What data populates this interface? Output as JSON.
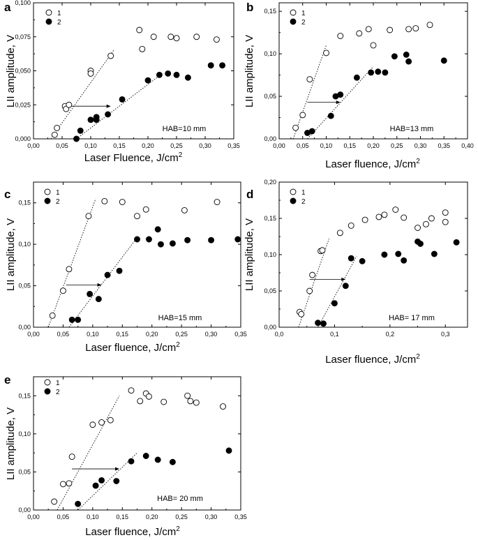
{
  "chart_data": [
    {
      "type": "scatter",
      "panel": "a",
      "xlabel": "Laser Fluence, J/cm",
      "xlabel_sup": "2",
      "ylabel": "LII amplitude, V",
      "xlim": [
        0,
        0.35
      ],
      "ylim": [
        0,
        0.1
      ],
      "xticks": [
        0,
        0.05,
        0.1,
        0.15,
        0.2,
        0.25,
        0.3,
        0.35
      ],
      "xticklabels": [
        "0,00",
        "0,05",
        "0,10",
        "0,15",
        "0,20",
        "0,25",
        "0,30",
        "0,35"
      ],
      "yticks": [
        0,
        0.025,
        0.05,
        0.075,
        0.1
      ],
      "yticklabels": [
        "0,000",
        "0,025",
        "0,050",
        "0,075",
        "0,100"
      ],
      "annotation": "HAB=10 mm",
      "series": [
        {
          "name": "1",
          "marker": "open",
          "points": [
            [
              0.037,
              0.003
            ],
            [
              0.041,
              0.008
            ],
            [
              0.055,
              0.024
            ],
            [
              0.057,
              0.022
            ],
            [
              0.062,
              0.025
            ],
            [
              0.1,
              0.05
            ],
            [
              0.1,
              0.048
            ],
            [
              0.135,
              0.061
            ],
            [
              0.185,
              0.08
            ],
            [
              0.19,
              0.066
            ],
            [
              0.21,
              0.075
            ],
            [
              0.24,
              0.075
            ],
            [
              0.25,
              0.074
            ],
            [
              0.285,
              0.075
            ],
            [
              0.32,
              0.073
            ]
          ]
        },
        {
          "name": "2",
          "marker": "filled",
          "points": [
            [
              0.075,
              0
            ],
            [
              0.082,
              0.006
            ],
            [
              0.1,
              0.014
            ],
            [
              0.11,
              0.016
            ],
            [
              0.11,
              0.014
            ],
            [
              0.13,
              0.018
            ],
            [
              0.155,
              0.029
            ],
            [
              0.2,
              0.043
            ],
            [
              0.22,
              0.047
            ],
            [
              0.235,
              0.048
            ],
            [
              0.25,
              0.047
            ],
            [
              0.27,
              0.045
            ],
            [
              0.31,
              0.054
            ],
            [
              0.33,
              0.054
            ]
          ]
        }
      ],
      "fits": [
        [
          [
            0.03,
            0
          ],
          [
            0.14,
            0.065
          ]
        ],
        [
          [
            0.075,
            0
          ],
          [
            0.225,
            0.048
          ]
        ]
      ],
      "arrow": [
        [
          0.06,
          0.024
        ],
        [
          0.135,
          0.024
        ]
      ]
    },
    {
      "type": "scatter",
      "panel": "b",
      "xlabel": "Laser fluence, J/cm",
      "xlabel_sup": "2",
      "ylabel": "LII amplitude, V",
      "xlim": [
        0,
        0.4
      ],
      "ylim": [
        0,
        0.16
      ],
      "xticks": [
        0,
        0.05,
        0.1,
        0.15,
        0.2,
        0.25,
        0.3,
        0.35,
        0.4
      ],
      "xticklabels": [
        "0,00",
        "0,05",
        "0,10",
        "0,15",
        "0,20",
        "0,25",
        "0,30",
        "0,35",
        "0,40"
      ],
      "yticks": [
        0,
        0.05,
        0.1,
        0.15
      ],
      "yticklabels": [
        "0,00",
        "0,05",
        "0,10",
        "0,15"
      ],
      "annotation": "HAB=13 mm",
      "series": [
        {
          "name": "1",
          "marker": "open",
          "points": [
            [
              0.035,
              0.013
            ],
            [
              0.05,
              0.028
            ],
            [
              0.065,
              0.07
            ],
            [
              0.1,
              0.101
            ],
            [
              0.13,
              0.121
            ],
            [
              0.17,
              0.124
            ],
            [
              0.19,
              0.129
            ],
            [
              0.2,
              0.11
            ],
            [
              0.235,
              0.128
            ],
            [
              0.275,
              0.129
            ],
            [
              0.29,
              0.13
            ],
            [
              0.32,
              0.134
            ]
          ]
        },
        {
          "name": "2",
          "marker": "filled",
          "points": [
            [
              0.06,
              0.007
            ],
            [
              0.07,
              0.009
            ],
            [
              0.11,
              0.027
            ],
            [
              0.12,
              0.05
            ],
            [
              0.13,
              0.052
            ],
            [
              0.165,
              0.072
            ],
            [
              0.195,
              0.078
            ],
            [
              0.21,
              0.079
            ],
            [
              0.225,
              0.078
            ],
            [
              0.245,
              0.097
            ],
            [
              0.27,
              0.099
            ],
            [
              0.275,
              0.091
            ],
            [
              0.35,
              0.092
            ]
          ]
        }
      ],
      "fits": [
        [
          [
            0.03,
            0
          ],
          [
            0.1,
            0.11
          ]
        ],
        [
          [
            0.06,
            0
          ],
          [
            0.2,
            0.085
          ]
        ]
      ],
      "arrow": [
        [
          0.06,
          0.043
        ],
        [
          0.13,
          0.043
        ]
      ]
    },
    {
      "type": "scatter",
      "panel": "c",
      "xlabel": "Laser fluence, J/cm",
      "xlabel_sup": "2",
      "ylabel": "LII amplitude, V",
      "xlim": [
        0,
        0.35
      ],
      "ylim": [
        0,
        0.175
      ],
      "xticks": [
        0,
        0.05,
        0.1,
        0.15,
        0.2,
        0.25,
        0.3,
        0.35
      ],
      "xticklabels": [
        "0,00",
        "0,05",
        "0,10",
        "0,15",
        "0,20",
        "0,25",
        "0,30",
        "0,35"
      ],
      "yticks": [
        0,
        0.05,
        0.1,
        0.15
      ],
      "yticklabels": [
        "0,00",
        "0,05",
        "0,10",
        "0,15"
      ],
      "annotation": "HAB=15 mm",
      "series": [
        {
          "name": "1",
          "marker": "open",
          "points": [
            [
              0.032,
              0.014
            ],
            [
              0.05,
              0.044
            ],
            [
              0.06,
              0.07
            ],
            [
              0.093,
              0.134
            ],
            [
              0.12,
              0.152
            ],
            [
              0.15,
              0.151
            ],
            [
              0.175,
              0.134
            ],
            [
              0.19,
              0.142
            ],
            [
              0.255,
              0.141
            ],
            [
              0.31,
              0.151
            ]
          ]
        },
        {
          "name": "2",
          "marker": "filled",
          "points": [
            [
              0.065,
              0.009
            ],
            [
              0.075,
              0.009
            ],
            [
              0.095,
              0.04
            ],
            [
              0.11,
              0.034
            ],
            [
              0.125,
              0.063
            ],
            [
              0.145,
              0.068
            ],
            [
              0.175,
              0.106
            ],
            [
              0.195,
              0.106
            ],
            [
              0.21,
              0.118
            ],
            [
              0.215,
              0.1
            ],
            [
              0.235,
              0.101
            ],
            [
              0.26,
              0.105
            ],
            [
              0.3,
              0.105
            ],
            [
              0.345,
              0.106
            ]
          ]
        }
      ],
      "fits": [
        [
          [
            0.025,
            0
          ],
          [
            0.105,
            0.155
          ]
        ],
        [
          [
            0.06,
            0
          ],
          [
            0.175,
            0.108
          ]
        ]
      ],
      "arrow": [
        [
          0.055,
          0.051
        ],
        [
          0.115,
          0.051
        ]
      ]
    },
    {
      "type": "scatter",
      "panel": "d",
      "xlabel": "Laser fluence, J/cm",
      "xlabel_sup": "2",
      "ylabel": "LII amplitude, V",
      "xlim": [
        0,
        0.34
      ],
      "ylim": [
        0,
        0.2
      ],
      "xticks": [
        0,
        0.1,
        0.2,
        0.3
      ],
      "xticklabels": [
        "0,0",
        "0,1",
        "0,2",
        "0,3"
      ],
      "yticks": [
        0,
        0.05,
        0.1,
        0.15,
        0.2
      ],
      "yticklabels": [
        "0,00",
        "0,05",
        "0,10",
        "0,15",
        "0,20"
      ],
      "annotation": "HAB= 17 mm",
      "series": [
        {
          "name": "1",
          "marker": "open",
          "points": [
            [
              0.037,
              0.021
            ],
            [
              0.04,
              0.018
            ],
            [
              0.055,
              0.05
            ],
            [
              0.06,
              0.072
            ],
            [
              0.075,
              0.105
            ],
            [
              0.078,
              0.106
            ],
            [
              0.11,
              0.13
            ],
            [
              0.13,
              0.14
            ],
            [
              0.155,
              0.148
            ],
            [
              0.18,
              0.152
            ],
            [
              0.19,
              0.155
            ],
            [
              0.21,
              0.162
            ],
            [
              0.225,
              0.151
            ],
            [
              0.25,
              0.137
            ],
            [
              0.265,
              0.142
            ],
            [
              0.275,
              0.15
            ],
            [
              0.3,
              0.158
            ],
            [
              0.3,
              0.145
            ]
          ]
        },
        {
          "name": "2",
          "marker": "filled",
          "points": [
            [
              0.07,
              0.006
            ],
            [
              0.08,
              0.005
            ],
            [
              0.1,
              0.033
            ],
            [
              0.12,
              0.057
            ],
            [
              0.13,
              0.095
            ],
            [
              0.15,
              0.091
            ],
            [
              0.19,
              0.1
            ],
            [
              0.215,
              0.101
            ],
            [
              0.225,
              0.092
            ],
            [
              0.25,
              0.118
            ],
            [
              0.255,
              0.115
            ],
            [
              0.28,
              0.101
            ],
            [
              0.32,
              0.117
            ]
          ]
        }
      ],
      "fits": [
        [
          [
            0.035,
            0
          ],
          [
            0.09,
            0.122
          ]
        ],
        [
          [
            0.07,
            0
          ],
          [
            0.14,
            0.098
          ]
        ]
      ],
      "arrow": [
        [
          0.055,
          0.066
        ],
        [
          0.12,
          0.066
        ]
      ]
    },
    {
      "type": "scatter",
      "panel": "e",
      "xlabel": "Laser fluence, J/cm",
      "xlabel_sup": "2",
      "ylabel": "LII amplitude, V",
      "xlim": [
        0,
        0.35
      ],
      "ylim": [
        0,
        0.175
      ],
      "xticks": [
        0,
        0.05,
        0.1,
        0.15,
        0.2,
        0.25,
        0.3,
        0.35
      ],
      "xticklabels": [
        "0,00",
        "0,05",
        "0,10",
        "0,15",
        "0,20",
        "0,25",
        "0,30",
        "0,35"
      ],
      "yticks": [
        0,
        0.05,
        0.1,
        0.15
      ],
      "yticklabels": [
        "0,00",
        "0,05",
        "0,10",
        "0,15"
      ],
      "annotation": "HAB= 20 mm",
      "series": [
        {
          "name": "1",
          "marker": "open",
          "points": [
            [
              0.035,
              0.011
            ],
            [
              0.05,
              0.034
            ],
            [
              0.06,
              0.035
            ],
            [
              0.065,
              0.07
            ],
            [
              0.1,
              0.112
            ],
            [
              0.115,
              0.115
            ],
            [
              0.13,
              0.118
            ],
            [
              0.165,
              0.157
            ],
            [
              0.18,
              0.143
            ],
            [
              0.19,
              0.153
            ],
            [
              0.195,
              0.149
            ],
            [
              0.22,
              0.142
            ],
            [
              0.26,
              0.15
            ],
            [
              0.265,
              0.143
            ],
            [
              0.275,
              0.141
            ],
            [
              0.32,
              0.136
            ]
          ]
        },
        {
          "name": "2",
          "marker": "filled",
          "points": [
            [
              0.075,
              0.008
            ],
            [
              0.105,
              0.032
            ],
            [
              0.115,
              0.039
            ],
            [
              0.14,
              0.038
            ],
            [
              0.165,
              0.064
            ],
            [
              0.19,
              0.071
            ],
            [
              0.21,
              0.066
            ],
            [
              0.235,
              0.063
            ],
            [
              0.33,
              0.078
            ]
          ]
        }
      ],
      "fits": [
        [
          [
            0.04,
            0
          ],
          [
            0.145,
            0.15
          ]
        ],
        [
          [
            0.075,
            0
          ],
          [
            0.175,
            0.075
          ]
        ]
      ],
      "arrow": [
        [
          0.065,
          0.054
        ],
        [
          0.145,
          0.054
        ]
      ]
    }
  ]
}
